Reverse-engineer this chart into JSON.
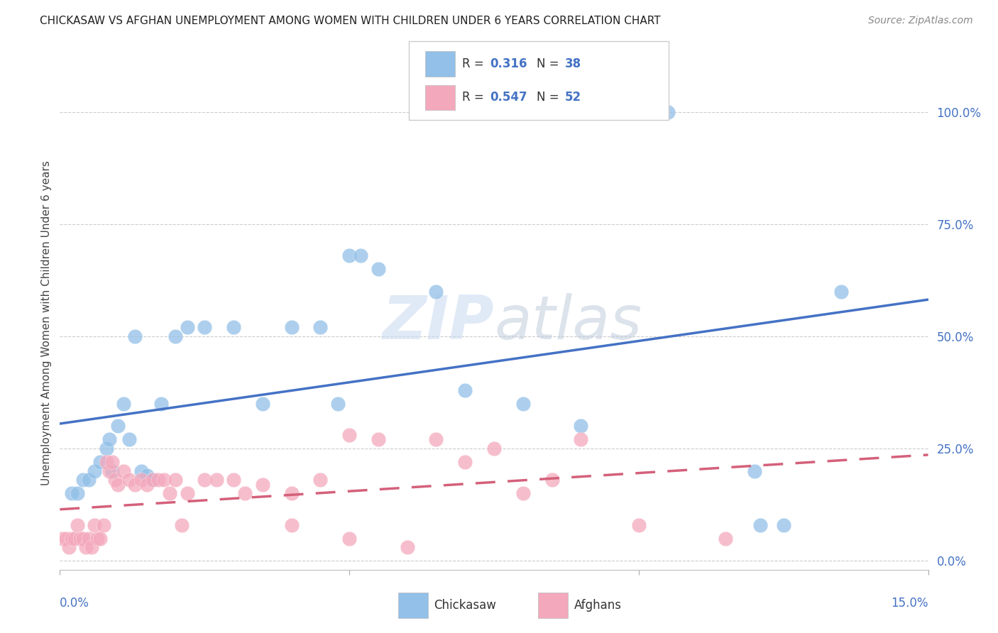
{
  "title": "CHICKASAW VS AFGHAN UNEMPLOYMENT AMONG WOMEN WITH CHILDREN UNDER 6 YEARS CORRELATION CHART",
  "source": "Source: ZipAtlas.com",
  "ylabel": "Unemployment Among Women with Children Under 6 years",
  "ytick_labels": [
    "0.0%",
    "25.0%",
    "50.0%",
    "75.0%",
    "100.0%"
  ],
  "ytick_vals": [
    0,
    25,
    50,
    75,
    100
  ],
  "xlim": [
    0,
    15
  ],
  "ylim": [
    -2,
    108
  ],
  "legend_r_chickasaw": "0.316",
  "legend_n_chickasaw": "38",
  "legend_r_afghan": "0.547",
  "legend_n_afghan": "52",
  "chickasaw_color": "#92C0E8",
  "afghan_color": "#F4A8BC",
  "line_chickasaw_color": "#4472C4",
  "line_afghan_color": "#D4607A",
  "watermark": "ZIPatlas",
  "chickasaw_scatter_x": [
    0.2,
    0.3,
    0.4,
    0.5,
    0.6,
    0.7,
    0.8,
    0.85,
    0.9,
    1.0,
    1.1,
    1.2,
    1.3,
    1.4,
    1.5,
    1.6,
    1.75,
    2.0,
    2.2,
    2.5,
    3.0,
    3.5,
    4.0,
    4.5,
    4.8,
    5.0,
    5.2,
    5.5,
    6.5,
    7.0,
    8.0,
    9.0,
    10.0,
    10.5,
    12.0,
    12.1,
    12.5,
    13.5
  ],
  "chickasaw_scatter_y": [
    15,
    15,
    18,
    18,
    20,
    22,
    25,
    27,
    20,
    30,
    35,
    27,
    50,
    20,
    19,
    18,
    35,
    50,
    52,
    52,
    52,
    35,
    52,
    52,
    35,
    68,
    68,
    65,
    60,
    38,
    35,
    30,
    100,
    100,
    20,
    8,
    8,
    60
  ],
  "afghan_scatter_x": [
    0.05,
    0.1,
    0.15,
    0.2,
    0.25,
    0.3,
    0.35,
    0.4,
    0.45,
    0.5,
    0.55,
    0.6,
    0.65,
    0.7,
    0.75,
    0.8,
    0.85,
    0.9,
    0.95,
    1.0,
    1.1,
    1.2,
    1.3,
    1.4,
    1.5,
    1.6,
    1.7,
    1.8,
    1.9,
    2.0,
    2.1,
    2.2,
    2.5,
    2.7,
    3.0,
    3.2,
    3.5,
    4.0,
    4.0,
    4.5,
    5.0,
    5.0,
    5.5,
    6.0,
    6.5,
    7.0,
    7.5,
    8.0,
    8.5,
    9.0,
    10.0,
    11.5
  ],
  "afghan_scatter_y": [
    5,
    5,
    3,
    5,
    5,
    8,
    5,
    5,
    3,
    5,
    3,
    8,
    5,
    5,
    8,
    22,
    20,
    22,
    18,
    17,
    20,
    18,
    17,
    18,
    17,
    18,
    18,
    18,
    15,
    18,
    8,
    15,
    18,
    18,
    18,
    15,
    17,
    15,
    8,
    18,
    5,
    28,
    27,
    3,
    27,
    22,
    25,
    15,
    18,
    27,
    8,
    5
  ],
  "grid_color": "#CCCCCC",
  "background_color": "#FFFFFF"
}
